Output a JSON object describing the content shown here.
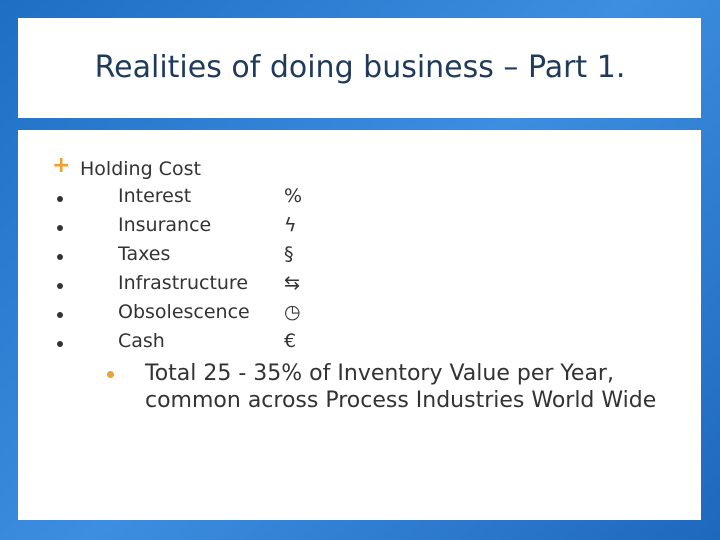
{
  "slide": {
    "title": "Realities of doing business – Part 1.",
    "heading": "Holding Cost",
    "items": [
      {
        "label": "Interest",
        "icon": "%"
      },
      {
        "label": "Insurance",
        "icon": "ϟ"
      },
      {
        "label": "Taxes",
        "icon": "§"
      },
      {
        "label": "Infrastructure",
        "icon": "⇆"
      },
      {
        "label": "Obsolescence",
        "icon": "◷"
      },
      {
        "label": "Cash",
        "icon": "€"
      }
    ],
    "total": "Total  25 - 35% of Inventory Value per Year, common across Process Industries World Wide"
  },
  "colors": {
    "background": "#2a7ad0",
    "accent": "#f0a030",
    "title_text": "#1f3a5a"
  }
}
